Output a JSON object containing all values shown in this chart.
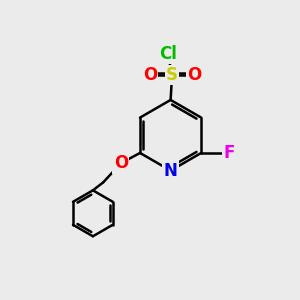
{
  "background_color": "#ebebeb",
  "bond_color": "#000000",
  "bond_width": 1.8,
  "atom_colors": {
    "C": "#000000",
    "N": "#0000ee",
    "O": "#ff0000",
    "S": "#cccc00",
    "F": "#ee00ee",
    "Cl": "#00bb00"
  },
  "font_size": 12
}
